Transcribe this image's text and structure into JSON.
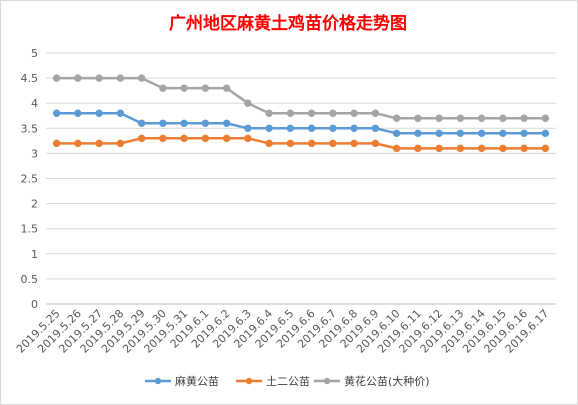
{
  "chart_data": {
    "type": "line",
    "title": "广州地区麻黄土鸡苗价格走势图",
    "xlabel": "",
    "ylabel": "",
    "ylim": [
      0,
      5
    ],
    "yticks": [
      "0",
      "0.5",
      "1",
      "1.5",
      "2",
      "2.5",
      "3",
      "3.5",
      "4",
      "4.5",
      "5"
    ],
    "grid": "horizontal",
    "legend_position": "bottom",
    "categories": [
      "2019.5.25",
      "2019.5.26",
      "2019.5.27",
      "2019.5.28",
      "2019.5.29",
      "2019.5.30",
      "2019.5.31",
      "2019.6.1",
      "2019.6.2",
      "2019.6.3",
      "2019.6.4",
      "2019.6.5",
      "2019.6.6",
      "2019.6.7",
      "2019.6.8",
      "2019.6.9",
      "2019.6.10",
      "2019.6.11",
      "2019.6.12",
      "2019.6.13",
      "2019.6.14",
      "2019.6.15",
      "2019.6.16",
      "2019.6.17"
    ],
    "series": [
      {
        "name": "麻黄公苗",
        "color": "#5b9bd5",
        "values": [
          3.8,
          3.8,
          3.8,
          3.8,
          3.6,
          3.6,
          3.6,
          3.6,
          3.6,
          3.5,
          3.5,
          3.5,
          3.5,
          3.5,
          3.5,
          3.5,
          3.4,
          3.4,
          3.4,
          3.4,
          3.4,
          3.4,
          3.4,
          3.4
        ]
      },
      {
        "name": "土二公苗",
        "color": "#ed7d31",
        "values": [
          3.2,
          3.2,
          3.2,
          3.2,
          3.3,
          3.3,
          3.3,
          3.3,
          3.3,
          3.3,
          3.2,
          3.2,
          3.2,
          3.2,
          3.2,
          3.2,
          3.1,
          3.1,
          3.1,
          3.1,
          3.1,
          3.1,
          3.1,
          3.1
        ]
      },
      {
        "name": "黄花公苗(大种价)",
        "color": "#a5a5a5",
        "values": [
          4.5,
          4.5,
          4.5,
          4.5,
          4.5,
          4.3,
          4.3,
          4.3,
          4.3,
          4.0,
          3.8,
          3.8,
          3.8,
          3.8,
          3.8,
          3.8,
          3.7,
          3.7,
          3.7,
          3.7,
          3.7,
          3.7,
          3.7,
          3.7
        ]
      }
    ]
  }
}
